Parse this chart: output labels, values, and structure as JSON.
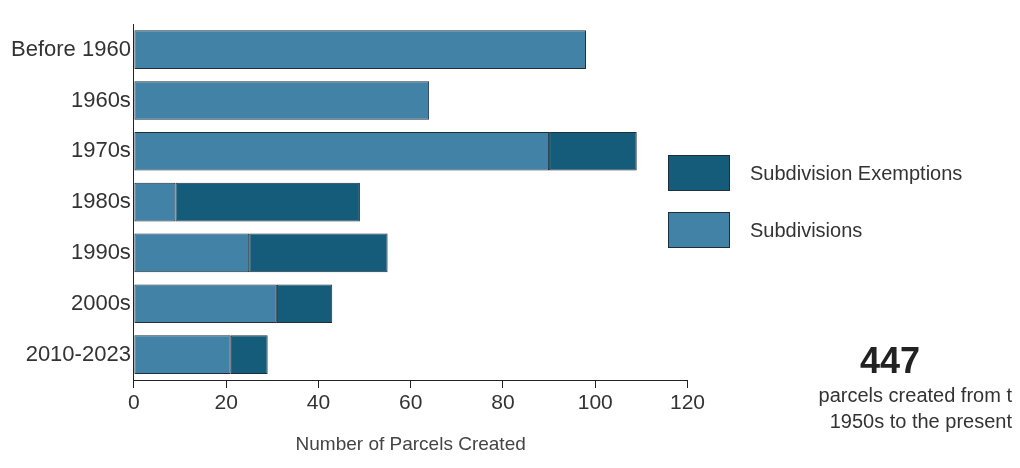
{
  "chart_data": {
    "type": "bar",
    "orientation": "horizontal",
    "stacked": true,
    "xlabel": "Number of Parcels Created",
    "categories": [
      "Before 1960",
      "1960s",
      "1970s",
      "1980s",
      "1990s",
      "2000s",
      "2010-2023"
    ],
    "series": [
      {
        "name": "Subdivisions",
        "color": "#4282a6",
        "values": [
          98,
          64,
          90,
          9,
          25,
          31,
          21
        ]
      },
      {
        "name": "Subdivision Exemptions",
        "color": "#155b7a",
        "values": [
          null,
          null,
          19,
          40,
          30,
          12,
          8
        ]
      }
    ],
    "xlim": [
      0,
      120
    ],
    "xticks": [
      0,
      20,
      40,
      60,
      80,
      100,
      120
    ],
    "grid": false,
    "legend": "right",
    "annotations": [
      "447",
      "parcels created from  t\n1950s to the present"
    ]
  }
}
